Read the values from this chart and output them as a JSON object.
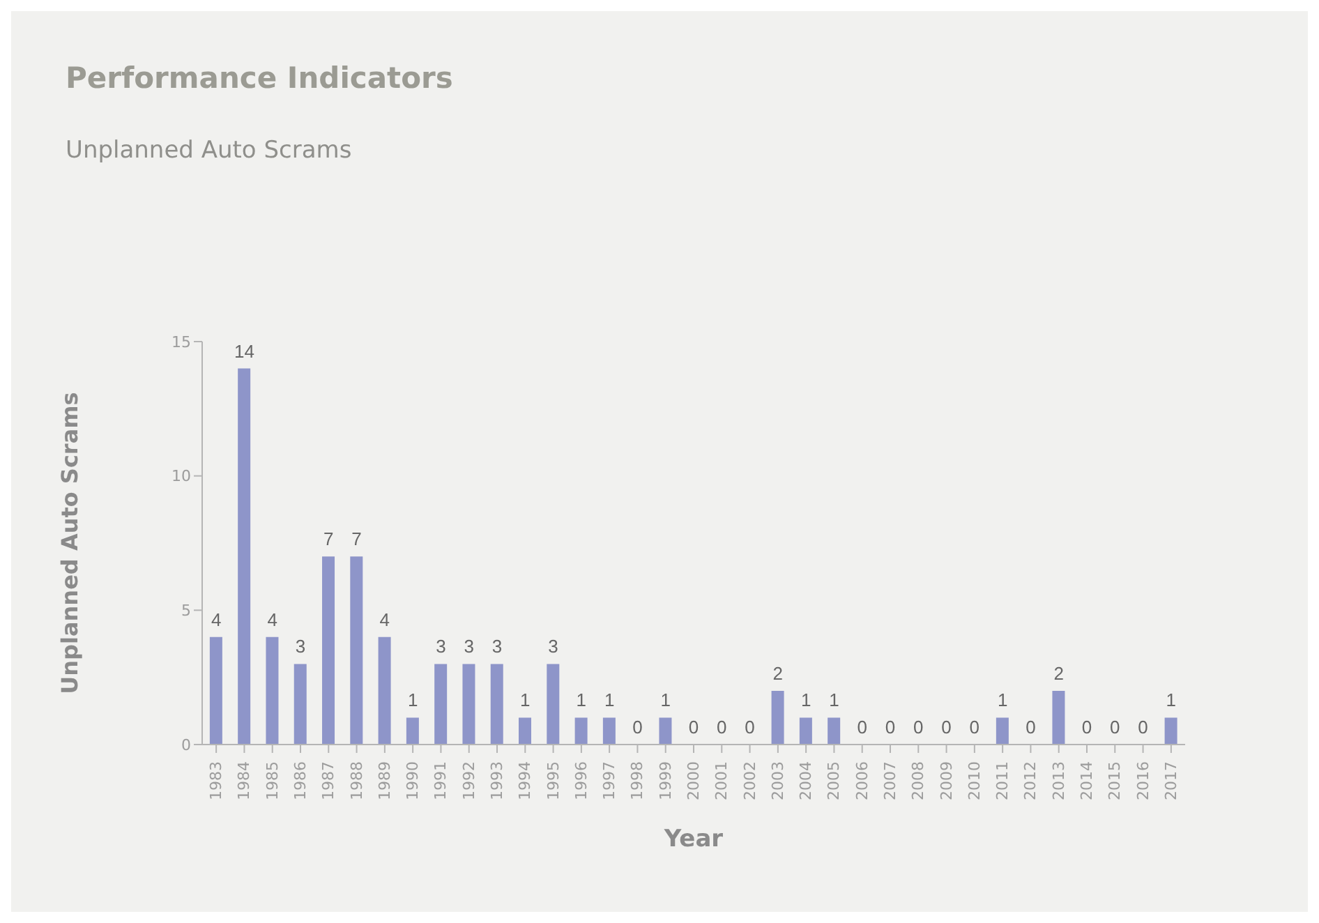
{
  "chart_data": {
    "type": "bar",
    "title": "Performance Indicators",
    "subtitle": "Unplanned Auto Scrams",
    "xlabel": "Year",
    "ylabel": "Unplanned Auto Scrams",
    "categories": [
      "1983",
      "1984",
      "1985",
      "1986",
      "1987",
      "1988",
      "1989",
      "1990",
      "1991",
      "1992",
      "1993",
      "1994",
      "1995",
      "1996",
      "1997",
      "1998",
      "1999",
      "2000",
      "2001",
      "2002",
      "2003",
      "2004",
      "2005",
      "2006",
      "2007",
      "2008",
      "2009",
      "2010",
      "2011",
      "2012",
      "2013",
      "2014",
      "2015",
      "2016",
      "2017"
    ],
    "values": [
      4,
      14,
      4,
      3,
      7,
      7,
      4,
      1,
      3,
      3,
      3,
      1,
      3,
      1,
      1,
      0,
      1,
      0,
      0,
      0,
      2,
      1,
      1,
      0,
      0,
      0,
      0,
      0,
      1,
      0,
      2,
      0,
      0,
      0,
      1
    ],
    "color": "#8e95c9",
    "ylim": [
      0,
      15
    ],
    "yticks": [
      0,
      5,
      10,
      15
    ],
    "data_labels": true
  }
}
